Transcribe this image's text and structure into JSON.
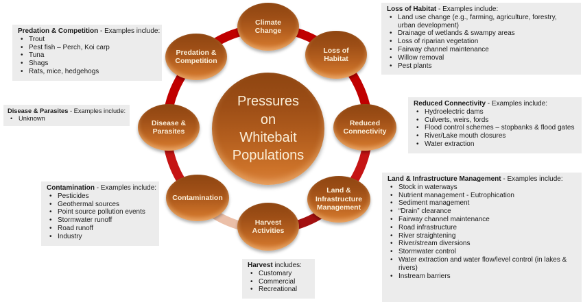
{
  "colors": {
    "ring_red": "#C00000",
    "ring_red2": "#C51414",
    "ring_dark": "#A31010",
    "ring_light": "#EBBFA8",
    "node_top": "#8E4511",
    "node_mid": "#B35E1E",
    "node_bottom": "#D9803A",
    "node_text": "#FBEFD9",
    "box_bg": "#ECECEC",
    "box_text": "#1A1A1A"
  },
  "diagram": {
    "center_label": "Pressures\non\nWhitebait\nPopulations",
    "nodes": [
      {
        "id": "climate-change",
        "label": "Climate\nChange"
      },
      {
        "id": "loss-of-habitat",
        "label": "Loss of\nHabitat"
      },
      {
        "id": "reduced-connectivity",
        "label": "Reduced\nConnectivity"
      },
      {
        "id": "land-infrastructure-management",
        "label": "Land &\nInfrastructure\nManagement"
      },
      {
        "id": "harvest-activities",
        "label": "Harvest\nActivities"
      },
      {
        "id": "contamination",
        "label": "Contamination"
      },
      {
        "id": "disease-parasites",
        "label": "Disease &\nParasites"
      },
      {
        "id": "predation-competition",
        "label": "Predation &\nCompetition"
      }
    ]
  },
  "boxes": {
    "predation": {
      "title": "Predation & Competition",
      "tail": " - Examples include:",
      "items": [
        "Trout",
        "Pest fish – Perch, Koi carp",
        "Tuna",
        "Shags",
        "Rats, mice, hedgehogs"
      ]
    },
    "disease": {
      "title": "Disease & Parasites",
      "tail": " - Examples include:",
      "items": [
        "Unknown"
      ]
    },
    "contamination": {
      "title": "Contamination",
      "tail": " - Examples include:",
      "items": [
        "Pesticides",
        "Geothermal sources",
        "Point source pollution events",
        "Stormwater runoff",
        "Road runoff",
        "Industry"
      ]
    },
    "harvest": {
      "title": "Harvest",
      "tail": " includes:",
      "items": [
        "Customary",
        "Commercial",
        "Recreational"
      ]
    },
    "loss": {
      "title": "Loss of Habitat",
      "tail": " - Examples include:",
      "items": [
        "Land use change (e.g., farming, agriculture, forestry, urban development)",
        "Drainage of wetlands & swampy areas",
        "Loss of riparian vegetation",
        "Fairway channel maintenance",
        "Willow removal",
        "Pest plants"
      ]
    },
    "reduced": {
      "title": "Reduced Connectivity",
      "tail": " - Examples include:",
      "items": [
        "Hydroelectric dams",
        "Culverts, weirs, fords",
        "Flood control schemes – stopbanks & flood gates",
        "River/Lake mouth closures",
        "Water extraction"
      ]
    },
    "land": {
      "title": "Land & Infrastructure Management",
      "tail": " - Examples include:",
      "items": [
        "Stock in waterways",
        "Nutrient management - Eutrophication",
        "Sediment management",
        "“Drain” clearance",
        "Fairway channel maintenance",
        "Road infrastructure",
        "River straightening",
        "River/stream diversions",
        "Stormwater control",
        "Water extraction and water flow/level control (in lakes & rivers)",
        "Instream barriers"
      ]
    }
  }
}
